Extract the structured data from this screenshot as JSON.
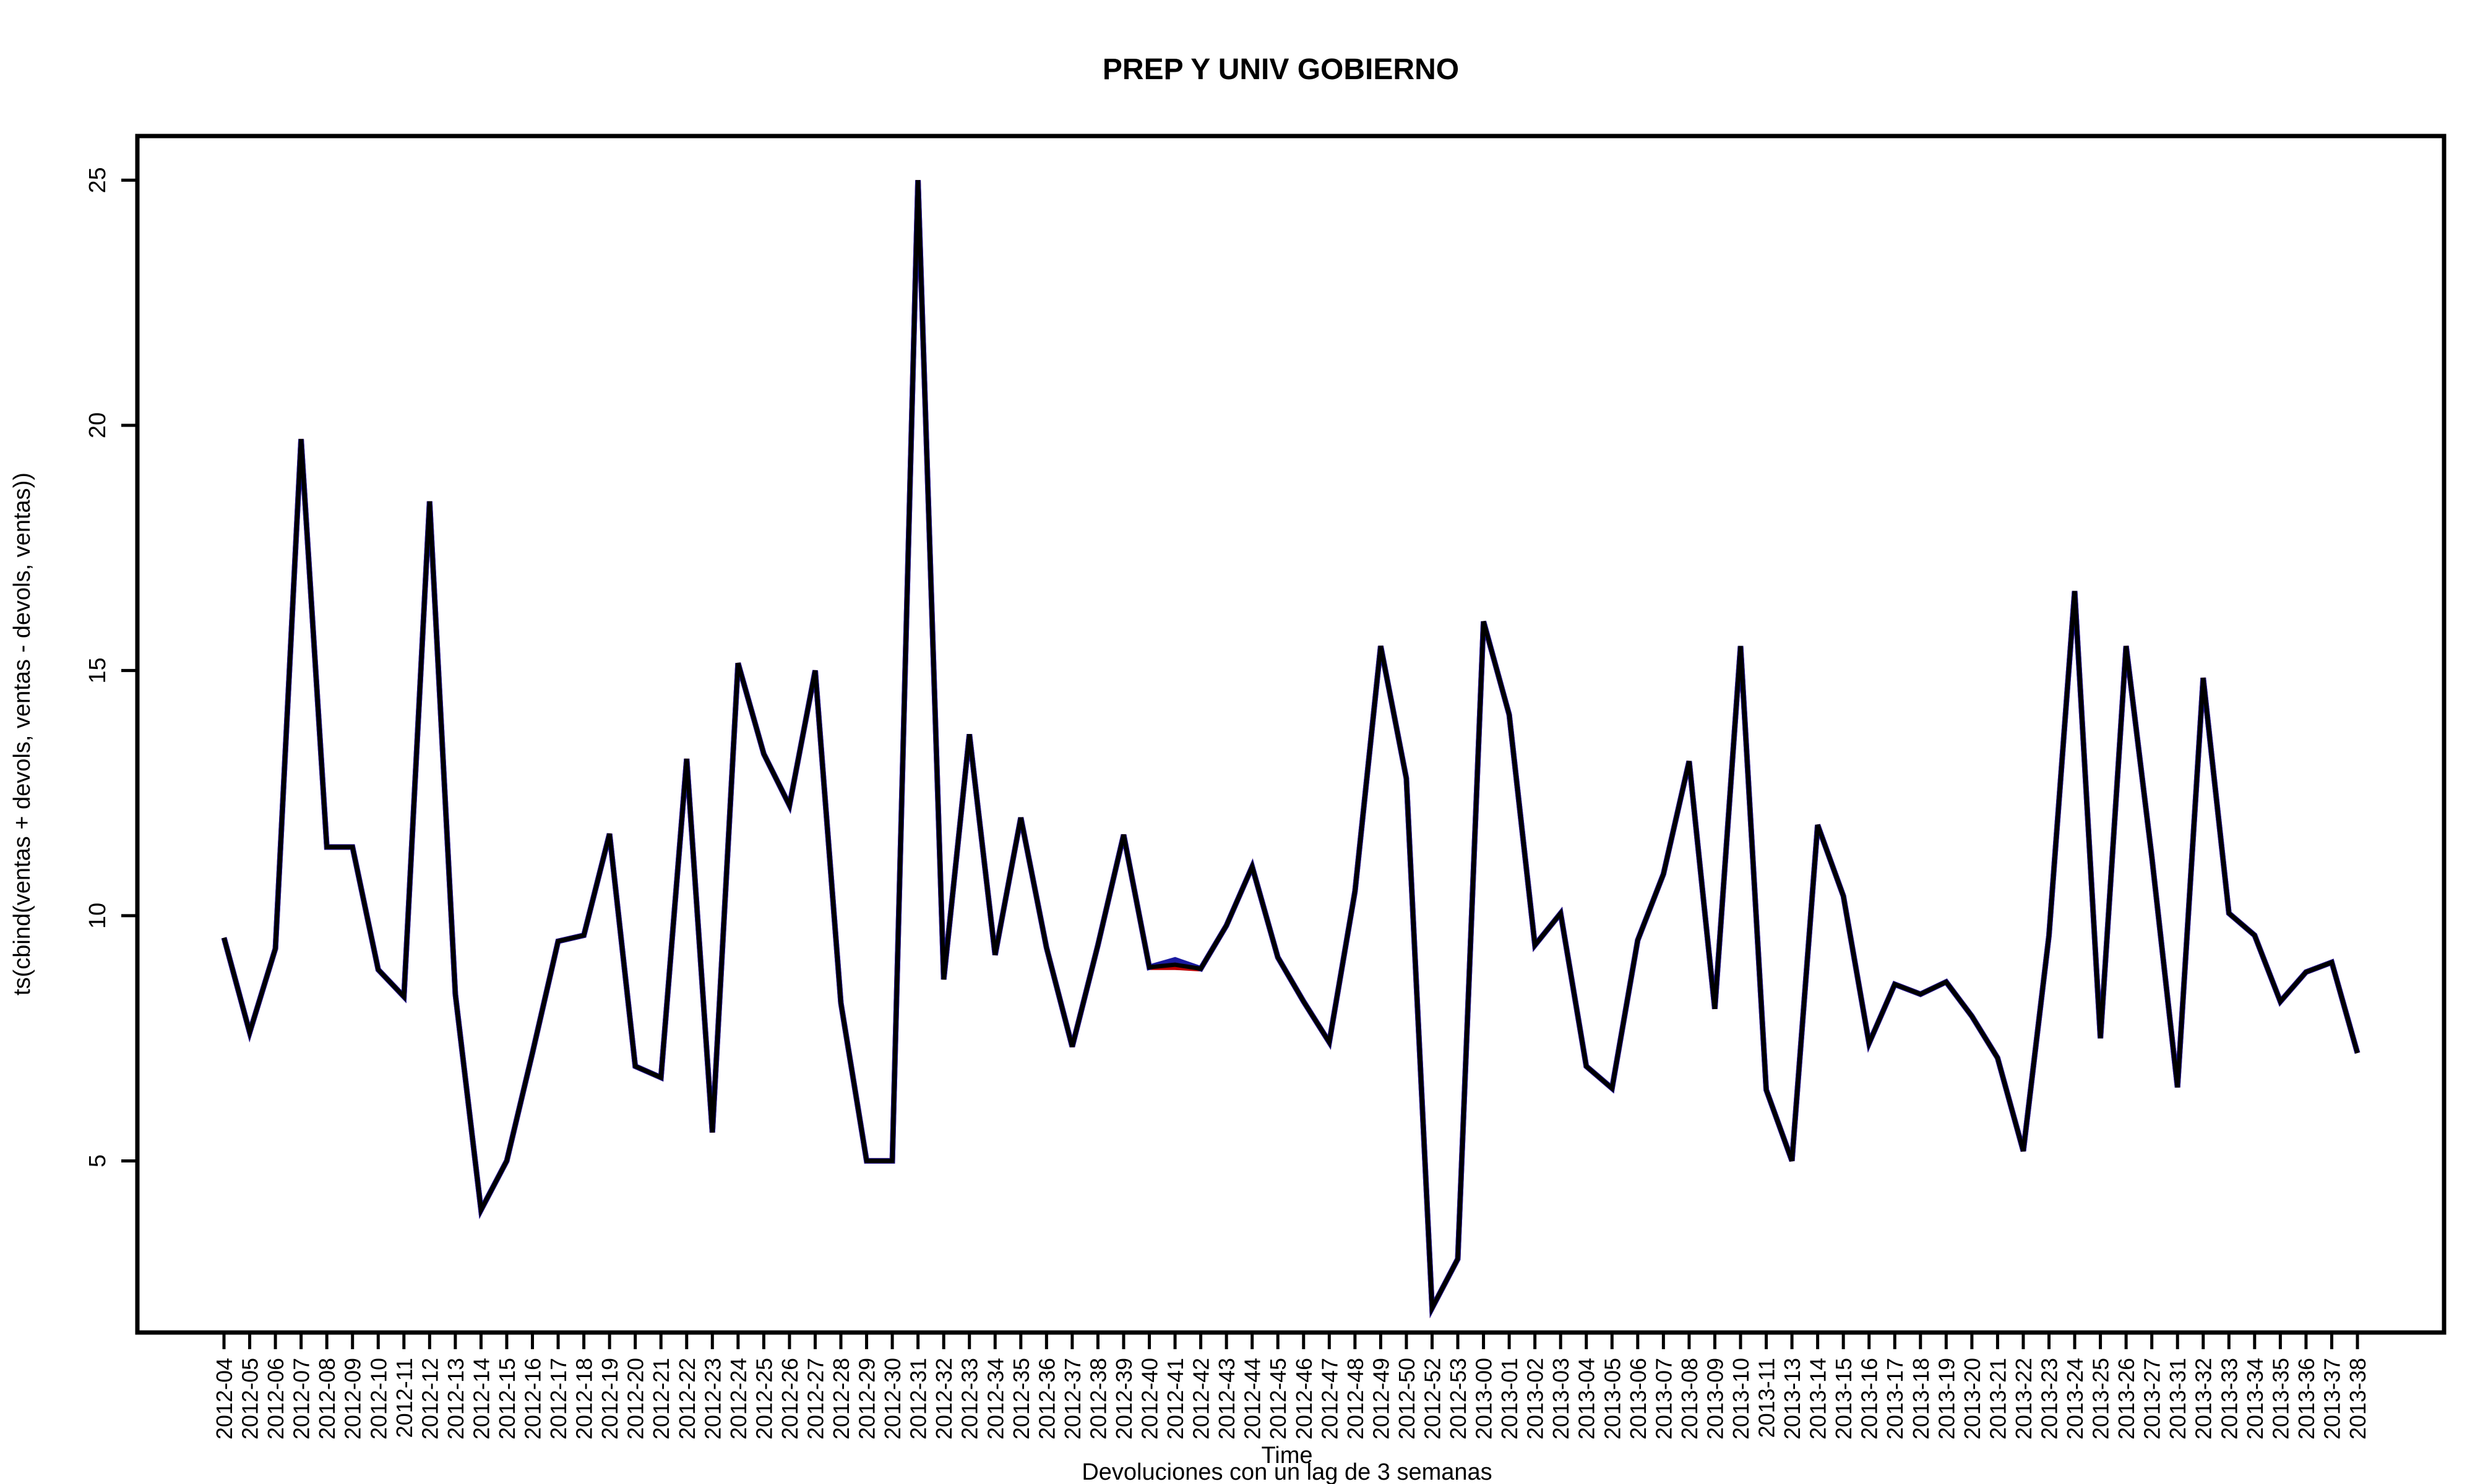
{
  "chart_data": {
    "type": "line",
    "title": "PREP Y UNIV GOBIERNO",
    "xlabel": "Time",
    "ylabel": "ts(cbind(ventas + devols, ventas - devols, ventas))",
    "subtitle": "Devoluciones con un lag de 3 semanas",
    "ylim": [
      1.5,
      25.9
    ],
    "yticks": [
      5,
      10,
      15,
      20,
      25
    ],
    "grid": false,
    "categories": [
      "2012-04",
      "2012-05",
      "2012-06",
      "2012-07",
      "2012-08",
      "2012-09",
      "2012-10",
      "2012-11",
      "2012-12",
      "2012-13",
      "2012-14",
      "2012-15",
      "2012-16",
      "2012-17",
      "2012-18",
      "2012-19",
      "2012-20",
      "2012-21",
      "2012-22",
      "2012-23",
      "2012-24",
      "2012-25",
      "2012-26",
      "2012-27",
      "2012-28",
      "2012-29",
      "2012-30",
      "2012-31",
      "2012-32",
      "2012-33",
      "2012-34",
      "2012-35",
      "2012-36",
      "2012-37",
      "2012-38",
      "2012-39",
      "2012-40",
      "2012-41",
      "2012-42",
      "2012-43",
      "2012-44",
      "2012-45",
      "2012-46",
      "2012-47",
      "2012-48",
      "2012-49",
      "2012-50",
      "2012-52",
      "2012-53",
      "2013-00",
      "2013-01",
      "2013-02",
      "2013-03",
      "2013-04",
      "2013-05",
      "2013-06",
      "2013-07",
      "2013-08",
      "2013-09",
      "2013-10",
      "2013-11",
      "2013-13",
      "2013-14",
      "2013-15",
      "2013-16",
      "2013-17",
      "2013-18",
      "2013-19",
      "2013-20",
      "2013-21",
      "2013-22",
      "2013-23",
      "2013-24",
      "2013-25",
      "2013-26",
      "2013-27",
      "2013-31",
      "2013-32",
      "2013-33",
      "2013-34",
      "2013-35",
      "2013-36",
      "2013-37",
      "2013-38"
    ],
    "series": [
      {
        "color": "#000000",
        "values": [
          9.55,
          7.62,
          9.33,
          19.72,
          11.4,
          11.4,
          8.9,
          8.35,
          18.45,
          8.4,
          4.0,
          5.0,
          7.2,
          9.48,
          9.6,
          11.67,
          6.93,
          6.7,
          13.2,
          5.58,
          15.15,
          13.3,
          12.25,
          15.0,
          8.22,
          5.0,
          5.0,
          25.0,
          8.7,
          13.7,
          9.2,
          12.0,
          9.35,
          7.33,
          9.4,
          11.65,
          8.95,
          9.0,
          8.92,
          9.8,
          11.0,
          9.15,
          8.25,
          7.42,
          10.5,
          15.5,
          12.8,
          2.0,
          3.0,
          16.0,
          14.1,
          9.4,
          10.05,
          6.93,
          6.48,
          9.5,
          10.85,
          13.15,
          8.1,
          15.5,
          6.45,
          5.0,
          11.85,
          10.4,
          7.4,
          8.6,
          8.4,
          8.65,
          7.95,
          7.1,
          5.2,
          9.6,
          16.62,
          7.5,
          15.5,
          11.2,
          6.5,
          14.85,
          10.05,
          9.6,
          8.25,
          8.85,
          9.05,
          7.2
        ]
      },
      {
        "color": "#c00000",
        "values": [
          9.55,
          7.62,
          9.33,
          19.72,
          11.4,
          11.4,
          8.9,
          8.35,
          18.45,
          8.4,
          4.0,
          5.0,
          7.2,
          9.48,
          9.6,
          11.67,
          6.93,
          6.7,
          13.2,
          5.58,
          15.15,
          13.3,
          12.25,
          15.0,
          8.22,
          5.0,
          5.0,
          25.0,
          8.7,
          13.7,
          9.2,
          12.0,
          9.35,
          7.33,
          9.4,
          11.65,
          8.95,
          8.95,
          8.92,
          9.8,
          11.0,
          9.15,
          8.25,
          7.42,
          10.5,
          15.5,
          12.8,
          2.0,
          3.0,
          16.0,
          14.1,
          9.4,
          10.05,
          6.93,
          6.48,
          9.5,
          10.85,
          13.15,
          8.1,
          15.5,
          6.45,
          5.0,
          11.85,
          10.4,
          7.4,
          8.6,
          8.4,
          8.65,
          7.95,
          7.1,
          5.2,
          9.6,
          16.62,
          7.5,
          15.5,
          11.2,
          6.5,
          14.85,
          10.05,
          9.6,
          8.25,
          8.85,
          9.05,
          7.2
        ]
      },
      {
        "color": "#1a1aa0",
        "values": [
          9.55,
          7.62,
          9.33,
          19.72,
          11.4,
          11.4,
          8.9,
          8.35,
          18.45,
          8.4,
          4.0,
          5.0,
          7.2,
          9.48,
          9.6,
          11.67,
          6.93,
          6.7,
          13.2,
          5.58,
          15.15,
          13.3,
          12.25,
          15.0,
          8.22,
          5.0,
          5.0,
          25.0,
          8.7,
          13.7,
          9.2,
          12.0,
          9.35,
          7.33,
          9.4,
          11.65,
          8.95,
          9.1,
          8.92,
          9.8,
          11.0,
          9.15,
          8.25,
          7.42,
          10.5,
          15.5,
          12.8,
          2.0,
          3.0,
          16.0,
          14.1,
          9.4,
          10.05,
          6.93,
          6.48,
          9.5,
          10.85,
          13.15,
          8.1,
          15.5,
          6.45,
          5.0,
          11.85,
          10.4,
          7.4,
          8.6,
          8.4,
          8.65,
          7.95,
          7.1,
          5.2,
          9.6,
          16.62,
          7.5,
          15.5,
          11.2,
          6.5,
          14.85,
          10.05,
          9.6,
          8.25,
          8.85,
          9.05,
          7.2
        ]
      }
    ]
  }
}
